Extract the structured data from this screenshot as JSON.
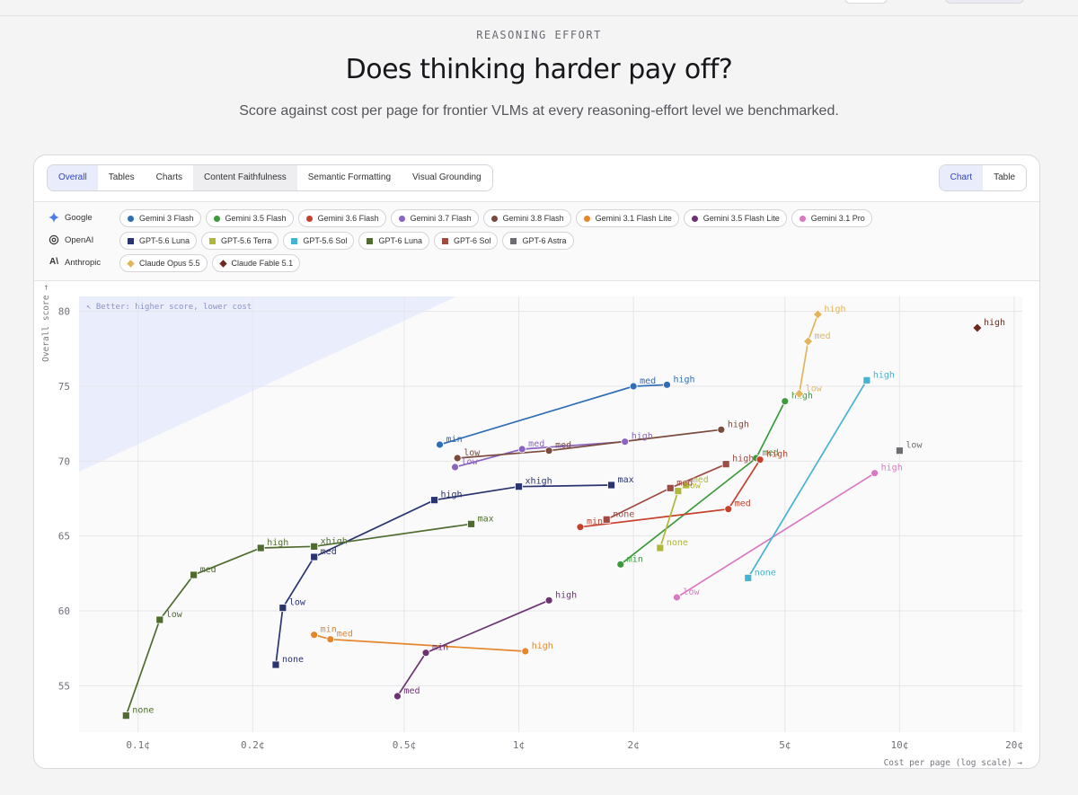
{
  "header": {
    "eyebrow": "REASONING EFFORT",
    "title": "Does thinking harder pay off?",
    "subtitle": "Score against cost per page for frontier VLMs at every reasoning-effort level we benchmarked."
  },
  "tabs": [
    "Overall",
    "Tables",
    "Charts",
    "Content Faithfulness",
    "Semantic Formatting",
    "Visual Grounding"
  ],
  "active_tab": "Overall",
  "view_toggle": [
    "Chart",
    "Table"
  ],
  "active_view": "Chart",
  "providers": [
    {
      "name": "Google",
      "icon": "gemini-star-icon",
      "models": [
        {
          "name": "Gemini 3 Flash",
          "color": "#2f6db5",
          "shape": "circle"
        },
        {
          "name": "Gemini 3.5 Flash",
          "color": "#3c9a3a",
          "shape": "circle"
        },
        {
          "name": "Gemini 3.6 Flash",
          "color": "#c6402c",
          "shape": "circle"
        },
        {
          "name": "Gemini 3.7 Flash",
          "color": "#8b64c0",
          "shape": "circle"
        },
        {
          "name": "Gemini 3.8 Flash",
          "color": "#7a4a3c",
          "shape": "circle"
        },
        {
          "name": "Gemini 3.1 Flash Lite",
          "color": "#e5862b",
          "shape": "circle"
        },
        {
          "name": "Gemini 3.5 Flash Lite",
          "color": "#6b3470",
          "shape": "circle"
        },
        {
          "name": "Gemini 3.1 Pro",
          "color": "#d979c4",
          "shape": "circle"
        }
      ]
    },
    {
      "name": "OpenAI",
      "icon": "openai-knot-icon",
      "models": [
        {
          "name": "GPT-5.6 Luna",
          "color": "#2a3470",
          "shape": "square"
        },
        {
          "name": "GPT-5.6 Terra",
          "color": "#b0b83a",
          "shape": "square"
        },
        {
          "name": "GPT-5.6 Sol",
          "color": "#46b3d2",
          "shape": "square"
        },
        {
          "name": "GPT-6 Luna",
          "color": "#4f6b2f",
          "shape": "square"
        },
        {
          "name": "GPT-6 Sol",
          "color": "#a04a44",
          "shape": "square"
        },
        {
          "name": "GPT-6 Astra",
          "color": "#6e6e72",
          "shape": "square"
        }
      ]
    },
    {
      "name": "Anthropic",
      "icon": "anthropic-a-icon",
      "models": [
        {
          "name": "Claude Opus 5.5",
          "color": "#e2b55a",
          "shape": "diamond"
        },
        {
          "name": "Claude Fable 5.1",
          "color": "#6e2a22",
          "shape": "diamond"
        }
      ]
    }
  ],
  "chart_data": {
    "type": "scatter",
    "ylabel": "Overall score →",
    "xlabel": "Cost per page (log scale) →",
    "x_scale": "log",
    "x_unit": "cents",
    "xlim": [
      0.07,
      21
    ],
    "ylim": [
      51.9,
      81.0
    ],
    "x_ticks": [
      0.1,
      0.2,
      0.5,
      1,
      2,
      5,
      10,
      20
    ],
    "x_tick_labels": [
      "0.1¢",
      "0.2¢",
      "0.5¢",
      "1¢",
      "2¢",
      "5¢",
      "10¢",
      "20¢"
    ],
    "y_ticks": [
      55,
      60,
      65,
      70,
      75,
      80
    ],
    "grid": true,
    "better_region_note": "↖ Better: higher score, lower cost",
    "series": [
      {
        "name": "Gemini 3 Flash",
        "color": "#2f6db5",
        "shape": "circle",
        "points": [
          {
            "x": 0.62,
            "y": 71.1,
            "label": "min"
          },
          {
            "x": 2.0,
            "y": 75.0,
            "label": "med"
          },
          {
            "x": 2.45,
            "y": 75.1,
            "label": "high"
          }
        ]
      },
      {
        "name": "Gemini 3.5 Flash",
        "color": "#3c9a3a",
        "shape": "circle",
        "points": [
          {
            "x": 1.85,
            "y": 63.1,
            "label": "min"
          },
          {
            "x": 4.2,
            "y": 70.2,
            "label": "med"
          },
          {
            "x": 5.0,
            "y": 74.0,
            "label": "high"
          }
        ]
      },
      {
        "name": "Gemini 3.6 Flash",
        "color": "#c6402c",
        "shape": "circle",
        "points": [
          {
            "x": 1.45,
            "y": 65.6,
            "label": "min"
          },
          {
            "x": 3.55,
            "y": 66.8,
            "label": "med"
          },
          {
            "x": 4.3,
            "y": 70.1,
            "label": "high"
          }
        ]
      },
      {
        "name": "Gemini 3.7 Flash",
        "color": "#8b64c0",
        "shape": "circle",
        "points": [
          {
            "x": 0.68,
            "y": 69.6,
            "label": "low"
          },
          {
            "x": 1.02,
            "y": 70.8,
            "label": "med"
          },
          {
            "x": 1.9,
            "y": 71.3,
            "label": "high"
          }
        ]
      },
      {
        "name": "Gemini 3.8 Flash",
        "color": "#7a4a3c",
        "shape": "circle",
        "points": [
          {
            "x": 0.69,
            "y": 70.2,
            "label": "low"
          },
          {
            "x": 1.2,
            "y": 70.7,
            "label": "med"
          },
          {
            "x": 3.4,
            "y": 72.1,
            "label": "high"
          }
        ]
      },
      {
        "name": "Gemini 3.1 Flash Lite",
        "color": "#e5862b",
        "shape": "circle",
        "points": [
          {
            "x": 0.29,
            "y": 58.4,
            "label": "min"
          },
          {
            "x": 0.32,
            "y": 58.1,
            "label": "med"
          },
          {
            "x": 1.04,
            "y": 57.3,
            "label": "high"
          }
        ]
      },
      {
        "name": "Gemini 3.5 Flash Lite",
        "color": "#6b3470",
        "shape": "circle",
        "points": [
          {
            "x": 0.48,
            "y": 54.3,
            "label": "med"
          },
          {
            "x": 0.57,
            "y": 57.2,
            "label": "min"
          },
          {
            "x": 1.2,
            "y": 60.7,
            "label": "high"
          }
        ]
      },
      {
        "name": "Gemini 3.1 Pro",
        "color": "#d979c4",
        "shape": "circle",
        "points": [
          {
            "x": 2.6,
            "y": 60.9,
            "label": "low"
          },
          {
            "x": 8.6,
            "y": 69.2,
            "label": "high"
          }
        ]
      },
      {
        "name": "GPT-5.6 Luna",
        "color": "#2a3470",
        "shape": "square",
        "points": [
          {
            "x": 0.23,
            "y": 56.4,
            "label": "none"
          },
          {
            "x": 0.24,
            "y": 60.2,
            "label": "low"
          },
          {
            "x": 0.29,
            "y": 63.6,
            "label": "med"
          },
          {
            "x": 0.6,
            "y": 67.4,
            "label": "high"
          },
          {
            "x": 1.0,
            "y": 68.3,
            "label": "xhigh"
          },
          {
            "x": 1.75,
            "y": 68.4,
            "label": "max"
          }
        ]
      },
      {
        "name": "GPT-5.6 Terra",
        "color": "#b0b83a",
        "shape": "square",
        "points": [
          {
            "x": 2.35,
            "y": 64.2,
            "label": "none"
          },
          {
            "x": 2.62,
            "y": 68.0,
            "label": "low"
          },
          {
            "x": 2.75,
            "y": 68.4,
            "label": "med"
          }
        ]
      },
      {
        "name": "GPT-5.6 Sol",
        "color": "#46b3d2",
        "shape": "square",
        "points": [
          {
            "x": 4.0,
            "y": 62.2,
            "label": "none"
          },
          {
            "x": 8.2,
            "y": 75.4,
            "label": "high"
          }
        ]
      },
      {
        "name": "GPT-6 Luna",
        "color": "#4f6b2f",
        "shape": "square",
        "points": [
          {
            "x": 0.093,
            "y": 53.0,
            "label": "none"
          },
          {
            "x": 0.114,
            "y": 59.4,
            "label": "low"
          },
          {
            "x": 0.14,
            "y": 62.4,
            "label": "med"
          },
          {
            "x": 0.21,
            "y": 64.2,
            "label": "high"
          },
          {
            "x": 0.29,
            "y": 64.3,
            "label": "xhigh"
          },
          {
            "x": 0.75,
            "y": 65.8,
            "label": "max"
          }
        ]
      },
      {
        "name": "GPT-6 Sol",
        "color": "#a04a44",
        "shape": "square",
        "points": [
          {
            "x": 1.7,
            "y": 66.1,
            "label": "none"
          },
          {
            "x": 2.5,
            "y": 68.2,
            "label": "med"
          },
          {
            "x": 3.5,
            "y": 69.8,
            "label": "high"
          }
        ]
      },
      {
        "name": "GPT-6 Astra",
        "color": "#6e6e72",
        "shape": "square",
        "points": [
          {
            "x": 10.0,
            "y": 70.7,
            "label": "low"
          }
        ]
      },
      {
        "name": "Claude Opus 5.5",
        "color": "#e2b55a",
        "shape": "diamond",
        "points": [
          {
            "x": 5.45,
            "y": 74.5,
            "label": "low"
          },
          {
            "x": 5.75,
            "y": 78.0,
            "label": "med"
          },
          {
            "x": 6.1,
            "y": 79.8,
            "label": "high"
          }
        ]
      },
      {
        "name": "Claude Fable 5.1",
        "color": "#6e2a22",
        "shape": "diamond",
        "points": [
          {
            "x": 16.0,
            "y": 78.9,
            "label": "high"
          }
        ]
      }
    ]
  }
}
